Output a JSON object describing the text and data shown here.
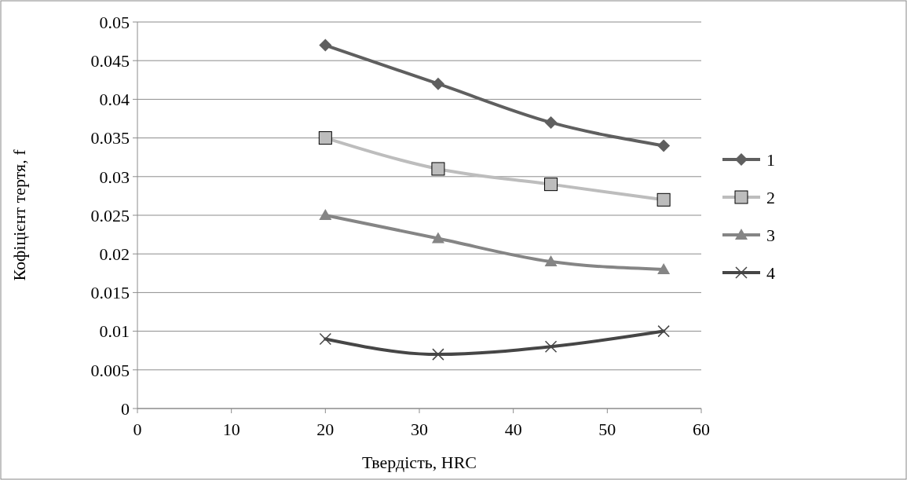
{
  "chart_data": {
    "type": "line",
    "xlabel": "Твердість, HRC",
    "ylabel": "Кофіцієнт тертя, f",
    "x": [
      20,
      32,
      44,
      56
    ],
    "series": [
      {
        "name": "1",
        "color": "#5f5f5f",
        "marker": "diamond",
        "values": [
          0.047,
          0.042,
          0.037,
          0.034
        ]
      },
      {
        "name": "2",
        "color": "#bdbdbd",
        "marker": "square",
        "values": [
          0.035,
          0.031,
          0.029,
          0.027
        ]
      },
      {
        "name": "3",
        "color": "#858585",
        "marker": "triangle",
        "values": [
          0.025,
          0.022,
          0.019,
          0.018
        ]
      },
      {
        "name": "4",
        "color": "#464646",
        "marker": "cross",
        "values": [
          0.009,
          0.007,
          0.008,
          0.01
        ]
      }
    ],
    "xlim": [
      0,
      60
    ],
    "xticks": [
      0,
      10,
      20,
      30,
      40,
      50,
      60
    ],
    "ylim": [
      0,
      0.05
    ],
    "yticks": [
      0,
      0.005,
      0.01,
      0.015,
      0.02,
      0.025,
      0.03,
      0.035,
      0.04,
      0.045,
      0.05
    ],
    "grid": "y",
    "legend": "right",
    "line_style": "solid"
  }
}
